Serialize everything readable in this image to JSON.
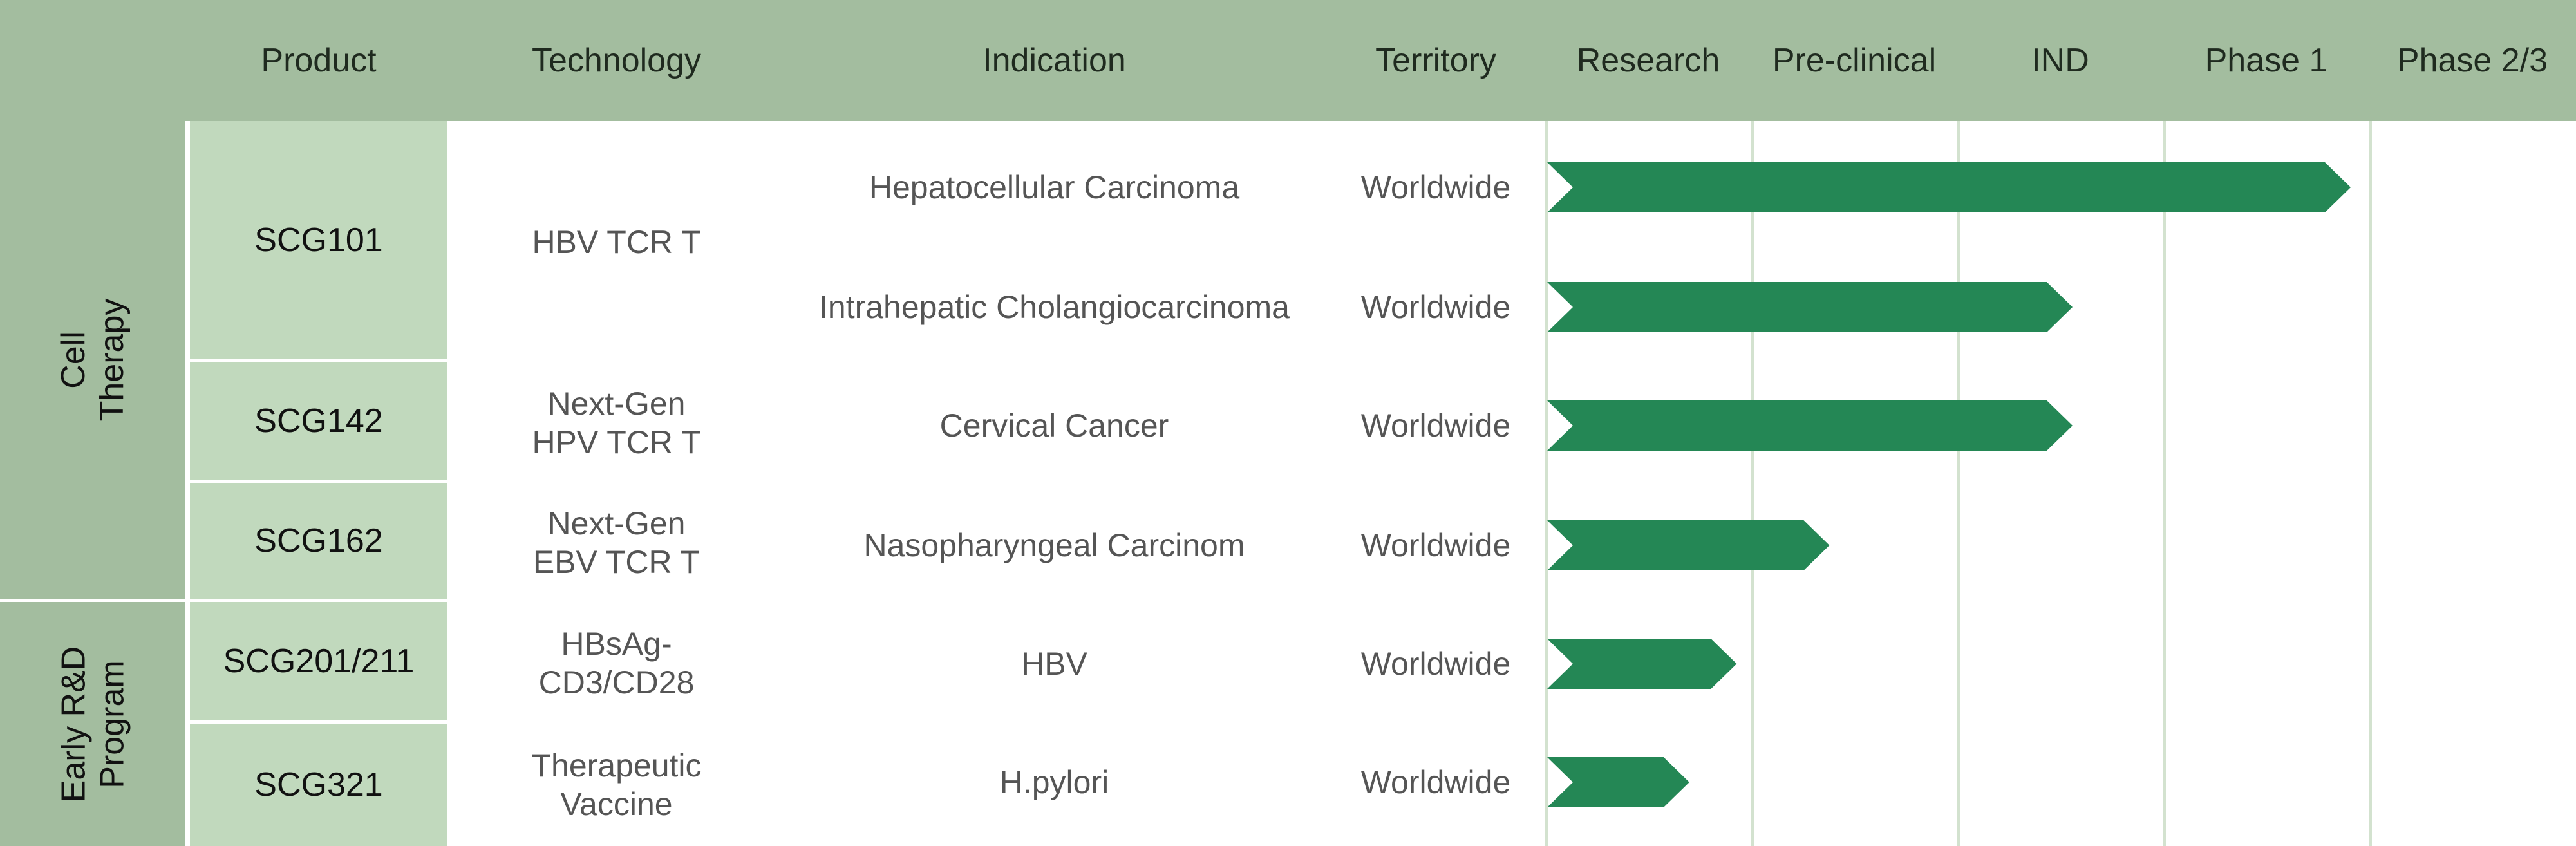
{
  "colors": {
    "header_bg": "#a3bd9f",
    "group_bg": "#a3bd9f",
    "product_bg": "#c1d9bd",
    "stage_line": "#d3e2cf",
    "bar": "#248755"
  },
  "headers": {
    "product": "Product",
    "technology": "Technology",
    "indication": "Indication",
    "territory": "Territory"
  },
  "chart_data": {
    "type": "bar",
    "stages": [
      "Research",
      "Pre-clinical",
      "IND",
      "Phase 1",
      "Phase 2/3"
    ],
    "value_note_units": "stage columns reached",
    "groups": [
      {
        "name": "Cell Therapy"
      },
      {
        "name": "Early R&D\nProgram"
      }
    ],
    "products": [
      {
        "name": "SCG101",
        "technology": "HBV TCR T"
      },
      {
        "name": "SCG142",
        "technology": "Next-Gen\nHPV TCR T"
      },
      {
        "name": "SCG162",
        "technology": "Next-Gen\nEBV TCR T"
      },
      {
        "name": "SCG201/211",
        "technology": "HBsAg-\nCD3/CD28"
      },
      {
        "name": "SCG321",
        "technology": "Therapeutic\nVaccine"
      }
    ],
    "rows": [
      {
        "product": "SCG101",
        "indication": "Hepatocellular Carcinoma",
        "territory": "Worldwide",
        "value": 3.9
      },
      {
        "product": "SCG101",
        "indication": "Intrahepatic Cholangiocarcinoma",
        "territory": "Worldwide",
        "value": 2.55
      },
      {
        "product": "SCG142",
        "indication": "Cervical Cancer",
        "territory": "Worldwide",
        "value": 2.55
      },
      {
        "product": "SCG162",
        "indication": "Nasopharyngeal Carcinom",
        "territory": "Worldwide",
        "value": 1.37
      },
      {
        "product": "SCG201/211",
        "indication": "HBV",
        "territory": "Worldwide",
        "value": 0.92
      },
      {
        "product": "SCG321",
        "indication": "H.pylori",
        "territory": "Worldwide",
        "value": 0.69
      }
    ]
  }
}
